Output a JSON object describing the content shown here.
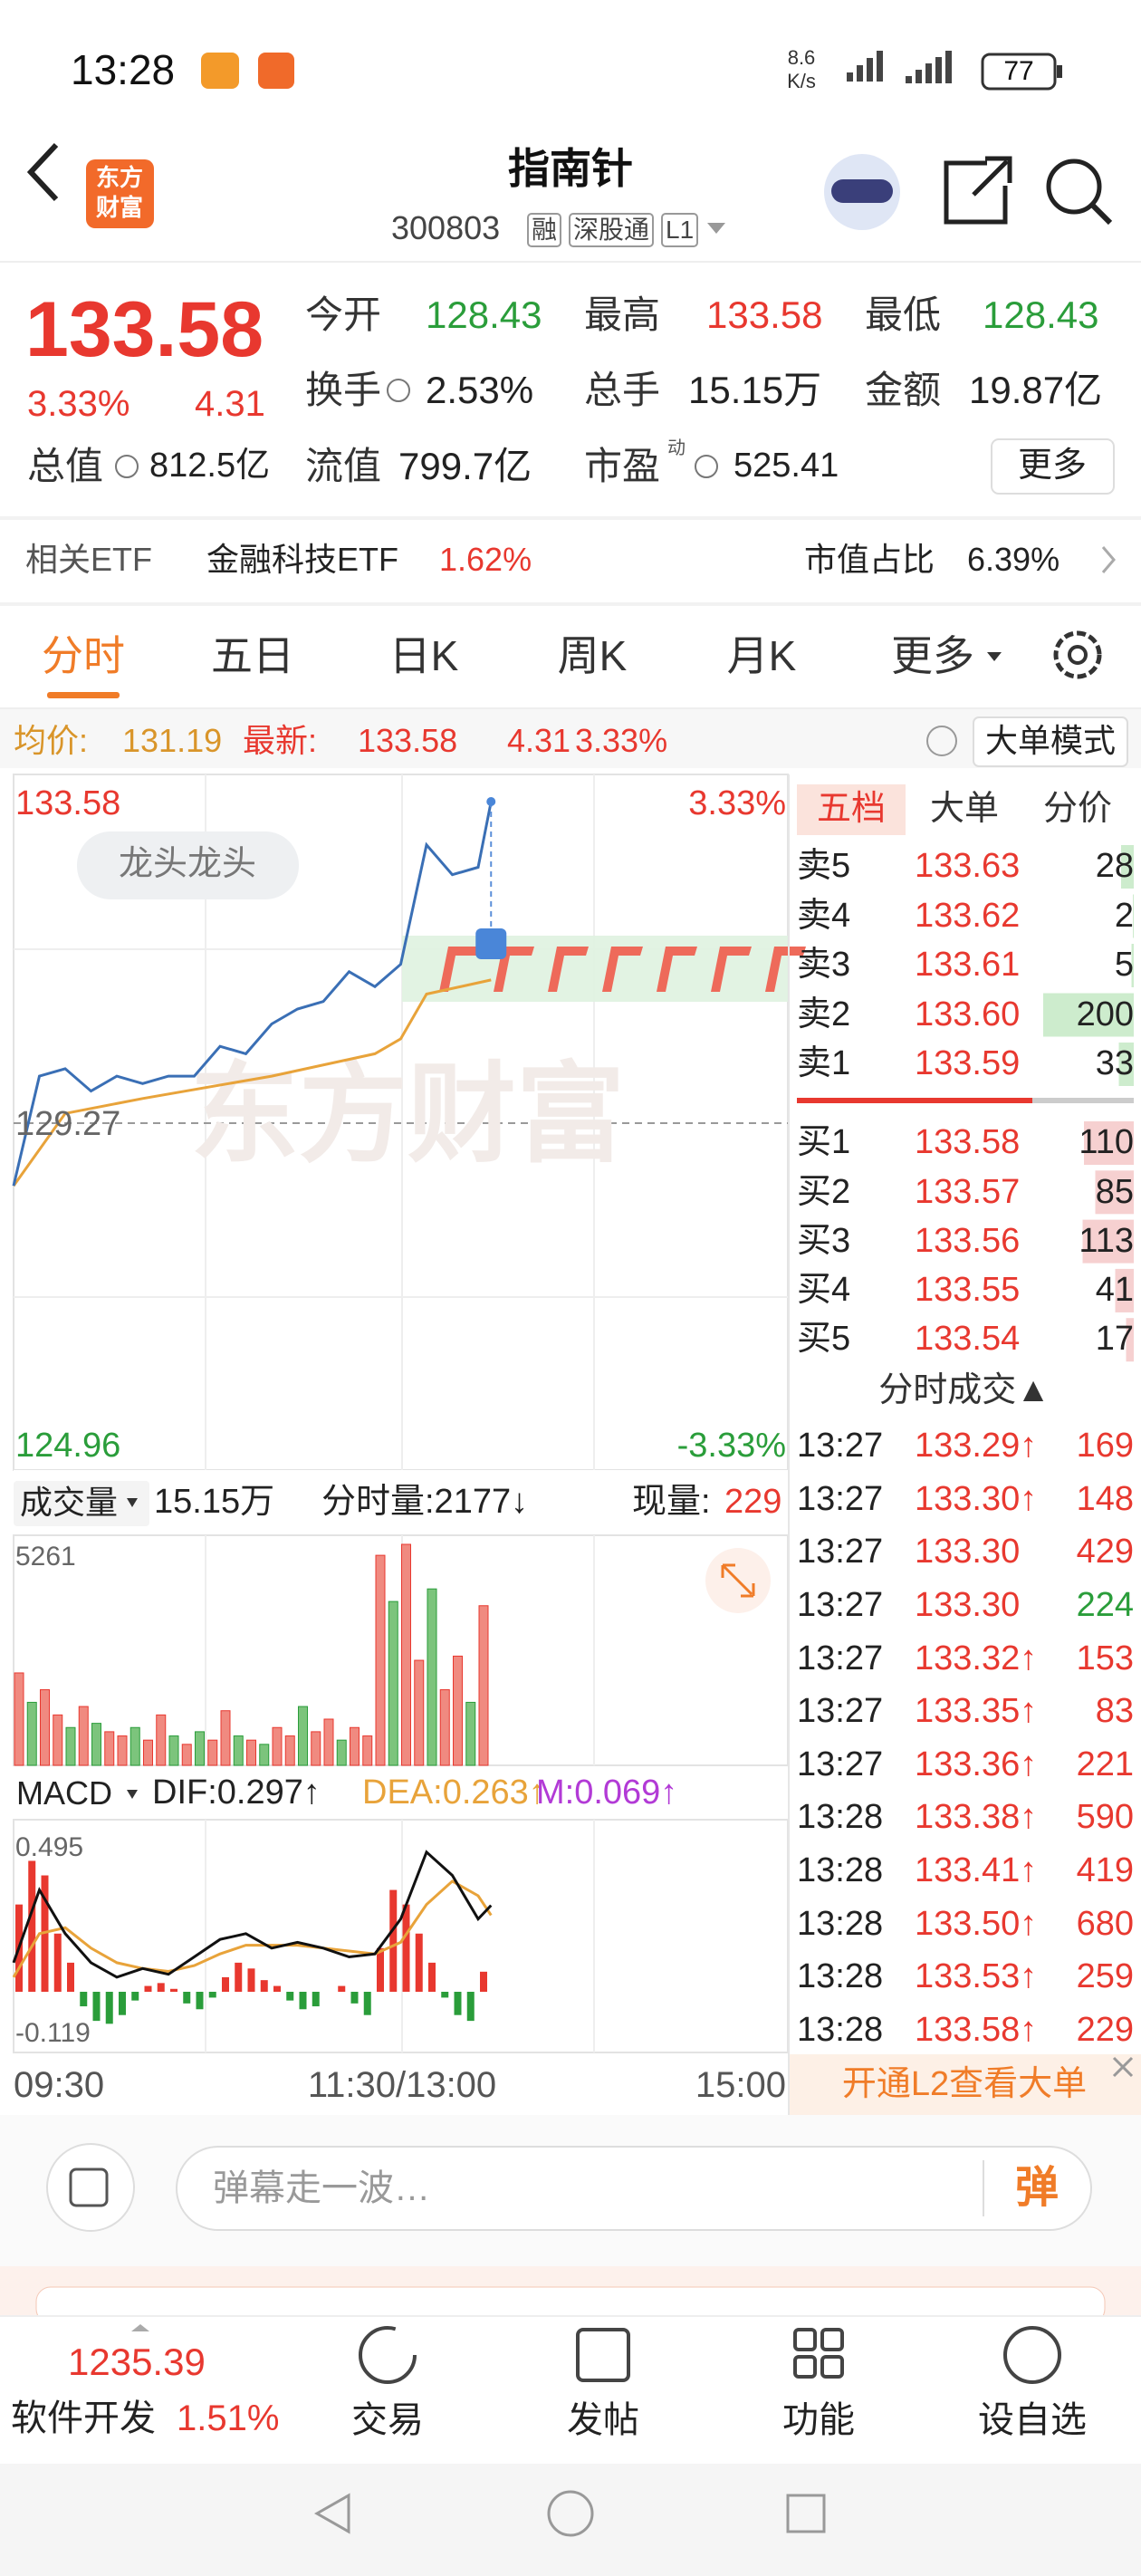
{
  "status_bar": {
    "time": "13:28",
    "net_speed": "8.6",
    "net_unit": "K/s",
    "battery": "77"
  },
  "header": {
    "logo": [
      "东方",
      "财富"
    ],
    "title": "指南针",
    "code": "300803",
    "tags": [
      "融",
      "深股通",
      "L1"
    ]
  },
  "quote": {
    "price": "133.58",
    "change_pct": "3.33%",
    "change": "4.31",
    "fields": [
      {
        "label": "今开",
        "value": "128.43"
      },
      {
        "label": "最高",
        "value": "133.58"
      },
      {
        "label": "最低",
        "value": "128.43"
      },
      {
        "label": "换手",
        "value": "2.53%"
      },
      {
        "label": "总手",
        "value": "15.15万"
      },
      {
        "label": "金额",
        "value": "19.87亿"
      },
      {
        "label": "总值",
        "value": "812.5亿"
      },
      {
        "label": "流值",
        "value": "799.7亿"
      },
      {
        "label": "市盈",
        "sup": "动",
        "value": "525.41"
      }
    ],
    "more": "更多"
  },
  "etf": {
    "label": "相关ETF",
    "name": "金融科技ETF",
    "change": "1.62%",
    "ratio_label": "市值占比",
    "ratio": "6.39%"
  },
  "tabs": [
    "分时",
    "五日",
    "日K",
    "周K",
    "月K",
    "更多"
  ],
  "info": {
    "avg_label": "均价:",
    "avg": "131.19",
    "latest_label": "最新:",
    "latest": "133.58",
    "change": "4.31",
    "pct": "3.33%",
    "mode": "大单模式"
  },
  "chart": {
    "ylim": [
      124.96,
      133.58
    ],
    "ref": 129.27,
    "pct_labels": [
      "3.33%",
      "-3.33%"
    ],
    "tag": "龙头龙头",
    "watermark": "东方财富",
    "xlim": [
      0,
      240
    ],
    "price": {
      "minutes": [
        0,
        8,
        16,
        24,
        32,
        40,
        48,
        56,
        64,
        72,
        80,
        88,
        96,
        104,
        112,
        120,
        128,
        136,
        144,
        148
      ],
      "values": [
        128.43,
        129.9,
        130.0,
        129.7,
        129.9,
        129.8,
        129.9,
        129.9,
        130.3,
        130.2,
        130.6,
        130.8,
        130.9,
        131.3,
        131.1,
        131.4,
        133.0,
        132.6,
        132.7,
        133.58
      ]
    },
    "avg": {
      "minutes": [
        0,
        16,
        40,
        80,
        112,
        120,
        128,
        148
      ],
      "values": [
        128.43,
        129.4,
        129.6,
        129.9,
        130.2,
        130.4,
        131.0,
        131.19
      ]
    },
    "x_labels": [
      "09:30",
      "11:30/13:00",
      "15:00"
    ]
  },
  "volume": {
    "label": "成交量",
    "total": "15.15万",
    "minute_volume": "分时量:2177↓",
    "current_label": "现量:",
    "current": 229,
    "ymax": 5261,
    "values": [
      2200,
      1500,
      1800,
      1200,
      900,
      1400,
      1000,
      800,
      700,
      900,
      600,
      1200,
      700,
      500,
      800,
      600,
      1300,
      700,
      600,
      500,
      900,
      700,
      1400,
      800,
      1100,
      600,
      900,
      700,
      5000,
      3900,
      5261,
      2500,
      4200,
      1800,
      2600,
      1500,
      3800
    ],
    "up": [
      true,
      false,
      true,
      true,
      false,
      true,
      false,
      true,
      true,
      false,
      true,
      true,
      false,
      true,
      false,
      true,
      true,
      false,
      true,
      false,
      true,
      true,
      false,
      true,
      true,
      false,
      true,
      true,
      true,
      false,
      true,
      true,
      false,
      true,
      true,
      false,
      true
    ]
  },
  "macd": {
    "label": "MACD",
    "dif": "DIF:0.297↑",
    "dea": "DEA:0.263↑",
    "m": "M:0.069↑",
    "ylim": [
      -0.119,
      0.495
    ],
    "hist": [
      0.3,
      0.45,
      0.4,
      0.2,
      0.1,
      -0.05,
      -0.1,
      -0.11,
      -0.08,
      -0.03,
      0.02,
      0.03,
      0.01,
      -0.04,
      -0.06,
      -0.02,
      0.05,
      0.1,
      0.08,
      0.04,
      0.02,
      -0.03,
      -0.06,
      -0.05,
      0.0,
      0.02,
      -0.04,
      -0.08,
      0.15,
      0.35,
      0.3,
      0.2,
      0.1,
      -0.02,
      -0.08,
      -0.1,
      0.069
    ],
    "minutes": [
      0,
      8,
      16,
      24,
      32,
      40,
      48,
      56,
      64,
      72,
      80,
      88,
      96,
      104,
      112,
      120,
      128,
      136,
      144,
      148
    ],
    "dif_values": [
      0.1,
      0.35,
      0.2,
      0.1,
      0.05,
      0.08,
      0.06,
      0.12,
      0.18,
      0.2,
      0.15,
      0.17,
      0.15,
      0.12,
      0.13,
      0.25,
      0.48,
      0.4,
      0.25,
      0.297
    ],
    "dea_values": [
      0.05,
      0.2,
      0.22,
      0.15,
      0.1,
      0.08,
      0.07,
      0.09,
      0.13,
      0.16,
      0.16,
      0.16,
      0.15,
      0.14,
      0.13,
      0.17,
      0.3,
      0.38,
      0.33,
      0.263
    ]
  },
  "order_book": {
    "tabs": [
      "五档",
      "大单",
      "分价"
    ],
    "sell": [
      {
        "label": "卖5",
        "price": "133.63",
        "volume": 28
      },
      {
        "label": "卖4",
        "price": "133.62",
        "volume": 2
      },
      {
        "label": "卖3",
        "price": "133.61",
        "volume": 5
      },
      {
        "label": "卖2",
        "price": "133.60",
        "volume": 200
      },
      {
        "label": "卖1",
        "price": "133.59",
        "volume": 33
      }
    ],
    "buy": [
      {
        "label": "买1",
        "price": "133.58",
        "volume": 110
      },
      {
        "label": "买2",
        "price": "133.57",
        "volume": 85
      },
      {
        "label": "买3",
        "price": "133.56",
        "volume": 113
      },
      {
        "label": "买4",
        "price": "133.55",
        "volume": 41
      },
      {
        "label": "买5",
        "price": "133.54",
        "volume": 17
      }
    ]
  },
  "trades": {
    "title": "分时成交▲",
    "rows": [
      {
        "time": "13:27",
        "price": "133.29↑",
        "volume": 169,
        "side": "buy"
      },
      {
        "time": "13:27",
        "price": "133.30↑",
        "volume": 148,
        "side": "buy"
      },
      {
        "time": "13:27",
        "price": "133.30",
        "volume": 429,
        "side": "buy"
      },
      {
        "time": "13:27",
        "price": "133.30",
        "volume": 224,
        "side": "sell"
      },
      {
        "time": "13:27",
        "price": "133.32↑",
        "volume": 153,
        "side": "buy"
      },
      {
        "time": "13:27",
        "price": "133.35↑",
        "volume": 83,
        "side": "buy"
      },
      {
        "time": "13:27",
        "price": "133.36↑",
        "volume": 221,
        "side": "buy"
      },
      {
        "time": "13:28",
        "price": "133.38↑",
        "volume": 590,
        "side": "buy"
      },
      {
        "time": "13:28",
        "price": "133.41↑",
        "volume": 419,
        "side": "buy"
      },
      {
        "time": "13:28",
        "price": "133.50↑",
        "volume": 680,
        "side": "buy"
      },
      {
        "time": "13:28",
        "price": "133.53↑",
        "volume": 259,
        "side": "buy"
      },
      {
        "time": "13:28",
        "price": "133.58↑",
        "volume": 229,
        "side": "buy"
      }
    ],
    "promo": "开通L2查看大单"
  },
  "input": {
    "placeholder": "弹幕走一波…",
    "button": "弹"
  },
  "bottom_nav": {
    "index_value": "1235.39",
    "index_name": "软件开发",
    "index_change": "1.51%",
    "items": [
      "交易",
      "发帖",
      "功能",
      "设自选"
    ]
  }
}
